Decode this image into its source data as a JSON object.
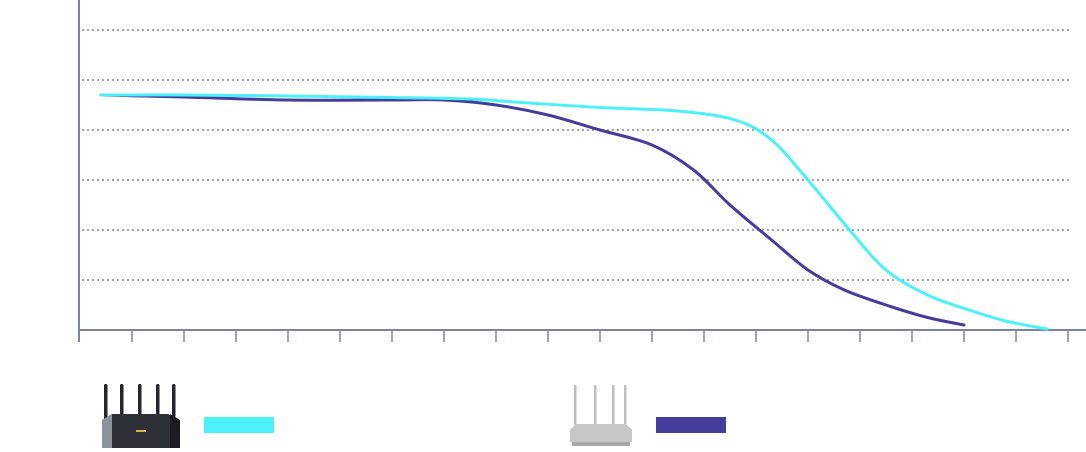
{
  "chart_data": {
    "type": "line",
    "title": "",
    "xlabel": "",
    "ylabel": "",
    "xlim": [
      0,
      19.4
    ],
    "ylim": [
      0,
      6
    ],
    "x_ticks": [
      0,
      1,
      2,
      3,
      4,
      5,
      6,
      7,
      8,
      9,
      10,
      11,
      12,
      13,
      14,
      15,
      16,
      17,
      18,
      19
    ],
    "y_gridlines": [
      1,
      2,
      3,
      4,
      5,
      6
    ],
    "grid": true,
    "grid_style": "dotted",
    "legend_placement": "bottom",
    "series": [
      {
        "color": "#4cf0f8",
        "icon": "black-router-icon",
        "points": [
          [
            0.4,
            4.7
          ],
          [
            2,
            4.7
          ],
          [
            4,
            4.68
          ],
          [
            6,
            4.65
          ],
          [
            7.5,
            4.62
          ],
          [
            8.5,
            4.55
          ],
          [
            10,
            4.45
          ],
          [
            11.5,
            4.38
          ],
          [
            12.6,
            4.2
          ],
          [
            13.3,
            3.8
          ],
          [
            14,
            3.0
          ],
          [
            14.8,
            2.0
          ],
          [
            15.5,
            1.2
          ],
          [
            16.3,
            0.7
          ],
          [
            17.1,
            0.4
          ],
          [
            17.8,
            0.18
          ],
          [
            18.6,
            0.02
          ]
        ]
      },
      {
        "color": "#443d9c",
        "icon": "white-router-icon",
        "points": [
          [
            0.4,
            4.7
          ],
          [
            2,
            4.66
          ],
          [
            4,
            4.6
          ],
          [
            6,
            4.6
          ],
          [
            7,
            4.6
          ],
          [
            8,
            4.5
          ],
          [
            9,
            4.3
          ],
          [
            10,
            4.0
          ],
          [
            11,
            3.7
          ],
          [
            11.8,
            3.2
          ],
          [
            12.5,
            2.5
          ],
          [
            13.3,
            1.8
          ],
          [
            14,
            1.2
          ],
          [
            14.7,
            0.8
          ],
          [
            15.5,
            0.5
          ],
          [
            16.3,
            0.25
          ],
          [
            17,
            0.1
          ]
        ]
      }
    ],
    "colors": {
      "axis": "#7a84a8",
      "grid": "#6e6e6e"
    }
  }
}
